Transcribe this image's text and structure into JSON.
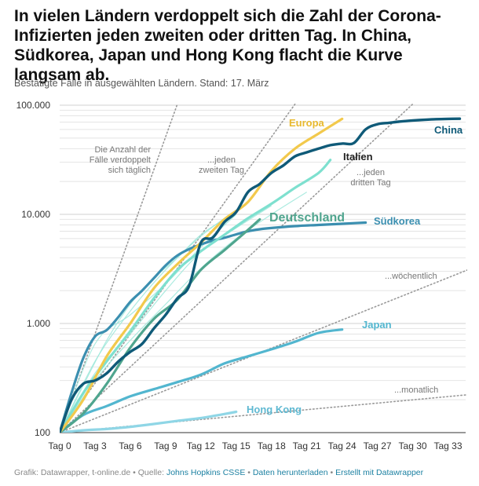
{
  "title": "In vielen Ländern verdoppelt sich die Zahl der Corona-Infizierten jeden zweiten oder dritten Tag. In China, Südkorea, Japan und Hong Kong flacht die Kurve langsam ab.",
  "subtitle": "Bestätigte Fälle in ausgewählten Ländern. Stand: 17. März",
  "footer": {
    "prefix": "Grafik: Datawrapper, t-online.de • Quelle: ",
    "source": "Johns Hopkins CSSE",
    "sep1": " • ",
    "download": "Daten herunterladen",
    "sep2": " • ",
    "made": "Erstellt mit Datawrapper"
  },
  "colors": {
    "china": "#0f5a78",
    "europa": "#f2c94c",
    "italien": "#7ee0cf",
    "deutschland": "#4fa58e",
    "suedkorea": "#3b8fb0",
    "japan": "#52b6cf",
    "hongkong": "#8fd6e6",
    "others": "#9ee8da",
    "reference": "#999999"
  },
  "chart_data": {
    "type": "line",
    "scale": "log",
    "title": "In vielen Ländern verdoppelt sich die Zahl der Corona-Infizierten jeden zweiten oder dritten Tag. In China, Südkorea, Japan und Hong Kong flacht die Kurve langsam ab.",
    "xlabel": "",
    "ylabel": "",
    "xlim": [
      0,
      34.5
    ],
    "ylim": [
      100,
      100000
    ],
    "x_ticks": [
      0,
      3,
      6,
      9,
      12,
      15,
      18,
      21,
      24,
      27,
      30,
      33
    ],
    "x_tick_labels": [
      "Tag 0",
      "Tag 3",
      "Tag 6",
      "Tag 9",
      "Tag 12",
      "Tag 15",
      "Tag 18",
      "Tag 21",
      "Tag 24",
      "Tag 27",
      "Tag 30",
      "Tag 33"
    ],
    "y_tick_labels": [
      {
        "value": 100,
        "label": "100"
      },
      {
        "value": 1000,
        "label": "1.000"
      },
      {
        "value": 10000,
        "label": "10.000"
      },
      {
        "value": 100000,
        "label": "100.000"
      }
    ],
    "grid": true,
    "reference_lines": [
      {
        "id": "daily",
        "label": "Die Anzahl der Fälle verdoppelt sich täglich",
        "x": [
          0,
          10
        ],
        "y": [
          100,
          102400
        ]
      },
      {
        "id": "every2",
        "label": "...jeden zweiten Tag",
        "x": [
          0,
          20
        ],
        "y": [
          100,
          102400
        ]
      },
      {
        "id": "every3",
        "label": "...jeden dritten Tag",
        "x": [
          0,
          30
        ],
        "y": [
          100,
          102400
        ]
      },
      {
        "id": "weekly",
        "label": "...wöchentlich",
        "x": [
          0,
          35
        ],
        "y": [
          100,
          3200
        ]
      },
      {
        "id": "monthly",
        "label": "...monatlich",
        "x": [
          0,
          35
        ],
        "y": [
          100,
          224
        ]
      }
    ],
    "series": [
      {
        "name": "China",
        "key": "china",
        "width": 3.4,
        "x": [
          0,
          1,
          2,
          3,
          4,
          5,
          6,
          7,
          8,
          9,
          10,
          11,
          12,
          13,
          14,
          15,
          16,
          17,
          18,
          19,
          20,
          21,
          22,
          23,
          24,
          25,
          26,
          27,
          28,
          29,
          30,
          31,
          32,
          33,
          34
        ],
        "y": [
          100,
          200,
          280,
          300,
          350,
          450,
          550,
          650,
          900,
          1200,
          1700,
          2200,
          5500,
          6100,
          8500,
          10500,
          16000,
          19000,
          24000,
          28000,
          34000,
          37000,
          40000,
          43000,
          44500,
          45000,
          60000,
          67000,
          69000,
          71000,
          72500,
          73500,
          74500,
          75000,
          75200
        ]
      },
      {
        "name": "Europa",
        "key": "europa",
        "width": 3.2,
        "x": [
          0,
          2,
          4,
          6,
          8,
          10,
          12,
          14,
          16,
          18,
          20,
          22,
          24
        ],
        "y": [
          100,
          200,
          500,
          1000,
          2100,
          3500,
          5500,
          9000,
          13000,
          25000,
          40000,
          55000,
          75000
        ]
      },
      {
        "name": "Italien",
        "key": "italien",
        "width": 3.2,
        "x": [
          0,
          2,
          4,
          6,
          8,
          10,
          12,
          14,
          16,
          18,
          20,
          22,
          23
        ],
        "y": [
          100,
          230,
          450,
          850,
          1700,
          3100,
          4600,
          6500,
          9200,
          12500,
          17500,
          24000,
          31500
        ]
      },
      {
        "name": "Deutschland",
        "key": "deutschland",
        "width": 3.2,
        "x": [
          0,
          2,
          4,
          6,
          8,
          10,
          12,
          14,
          16,
          17
        ],
        "y": [
          100,
          150,
          280,
          600,
          1100,
          1650,
          3100,
          4700,
          7200,
          9000
        ]
      },
      {
        "name": "Südkorea",
        "key": "suedkorea",
        "width": 3.2,
        "x": [
          0,
          1,
          2,
          3,
          4,
          5,
          6,
          7,
          8,
          9,
          10,
          11,
          12,
          13,
          14,
          15,
          16,
          17,
          18,
          20,
          22,
          24,
          26
        ],
        "y": [
          100,
          230,
          480,
          760,
          870,
          1150,
          1580,
          2000,
          2600,
          3400,
          4200,
          4800,
          5300,
          5750,
          6100,
          6550,
          7000,
          7300,
          7500,
          7800,
          8000,
          8200,
          8400
        ]
      },
      {
        "name": "Japan",
        "key": "japan",
        "width": 3.2,
        "x": [
          0,
          2,
          4,
          6,
          8,
          10,
          12,
          14,
          16,
          18,
          20,
          22,
          24
        ],
        "y": [
          100,
          145,
          175,
          215,
          250,
          290,
          340,
          430,
          500,
          580,
          680,
          820,
          880
        ]
      },
      {
        "name": "Hong Kong",
        "key": "hongkong",
        "width": 3.2,
        "x": [
          0,
          2,
          4,
          6,
          8,
          10,
          12,
          14,
          15
        ],
        "y": [
          100,
          105,
          108,
          113,
          120,
          128,
          136,
          148,
          155
        ]
      }
    ],
    "other_lines": [
      {
        "x": [
          0,
          3,
          6,
          9,
          12,
          15
        ],
        "y": [
          100,
          650,
          1200,
          2300,
          5000,
          10000
        ]
      },
      {
        "x": [
          0,
          3,
          6,
          9,
          12,
          15
        ],
        "y": [
          100,
          450,
          1300,
          3100,
          6300,
          11000
        ]
      },
      {
        "x": [
          0,
          3,
          6,
          9,
          12,
          15,
          18
        ],
        "y": [
          100,
          350,
          800,
          2000,
          4500,
          7500,
          12000
        ]
      },
      {
        "x": [
          0,
          3,
          6,
          9,
          12,
          15,
          18,
          21
        ],
        "y": [
          100,
          300,
          700,
          1500,
          3200,
          6000,
          10000,
          16000
        ]
      },
      {
        "x": [
          0,
          2,
          4,
          6,
          8,
          10,
          12,
          14
        ],
        "y": [
          100,
          270,
          700,
          1500,
          2600,
          4000,
          6500,
          9000
        ]
      }
    ]
  }
}
